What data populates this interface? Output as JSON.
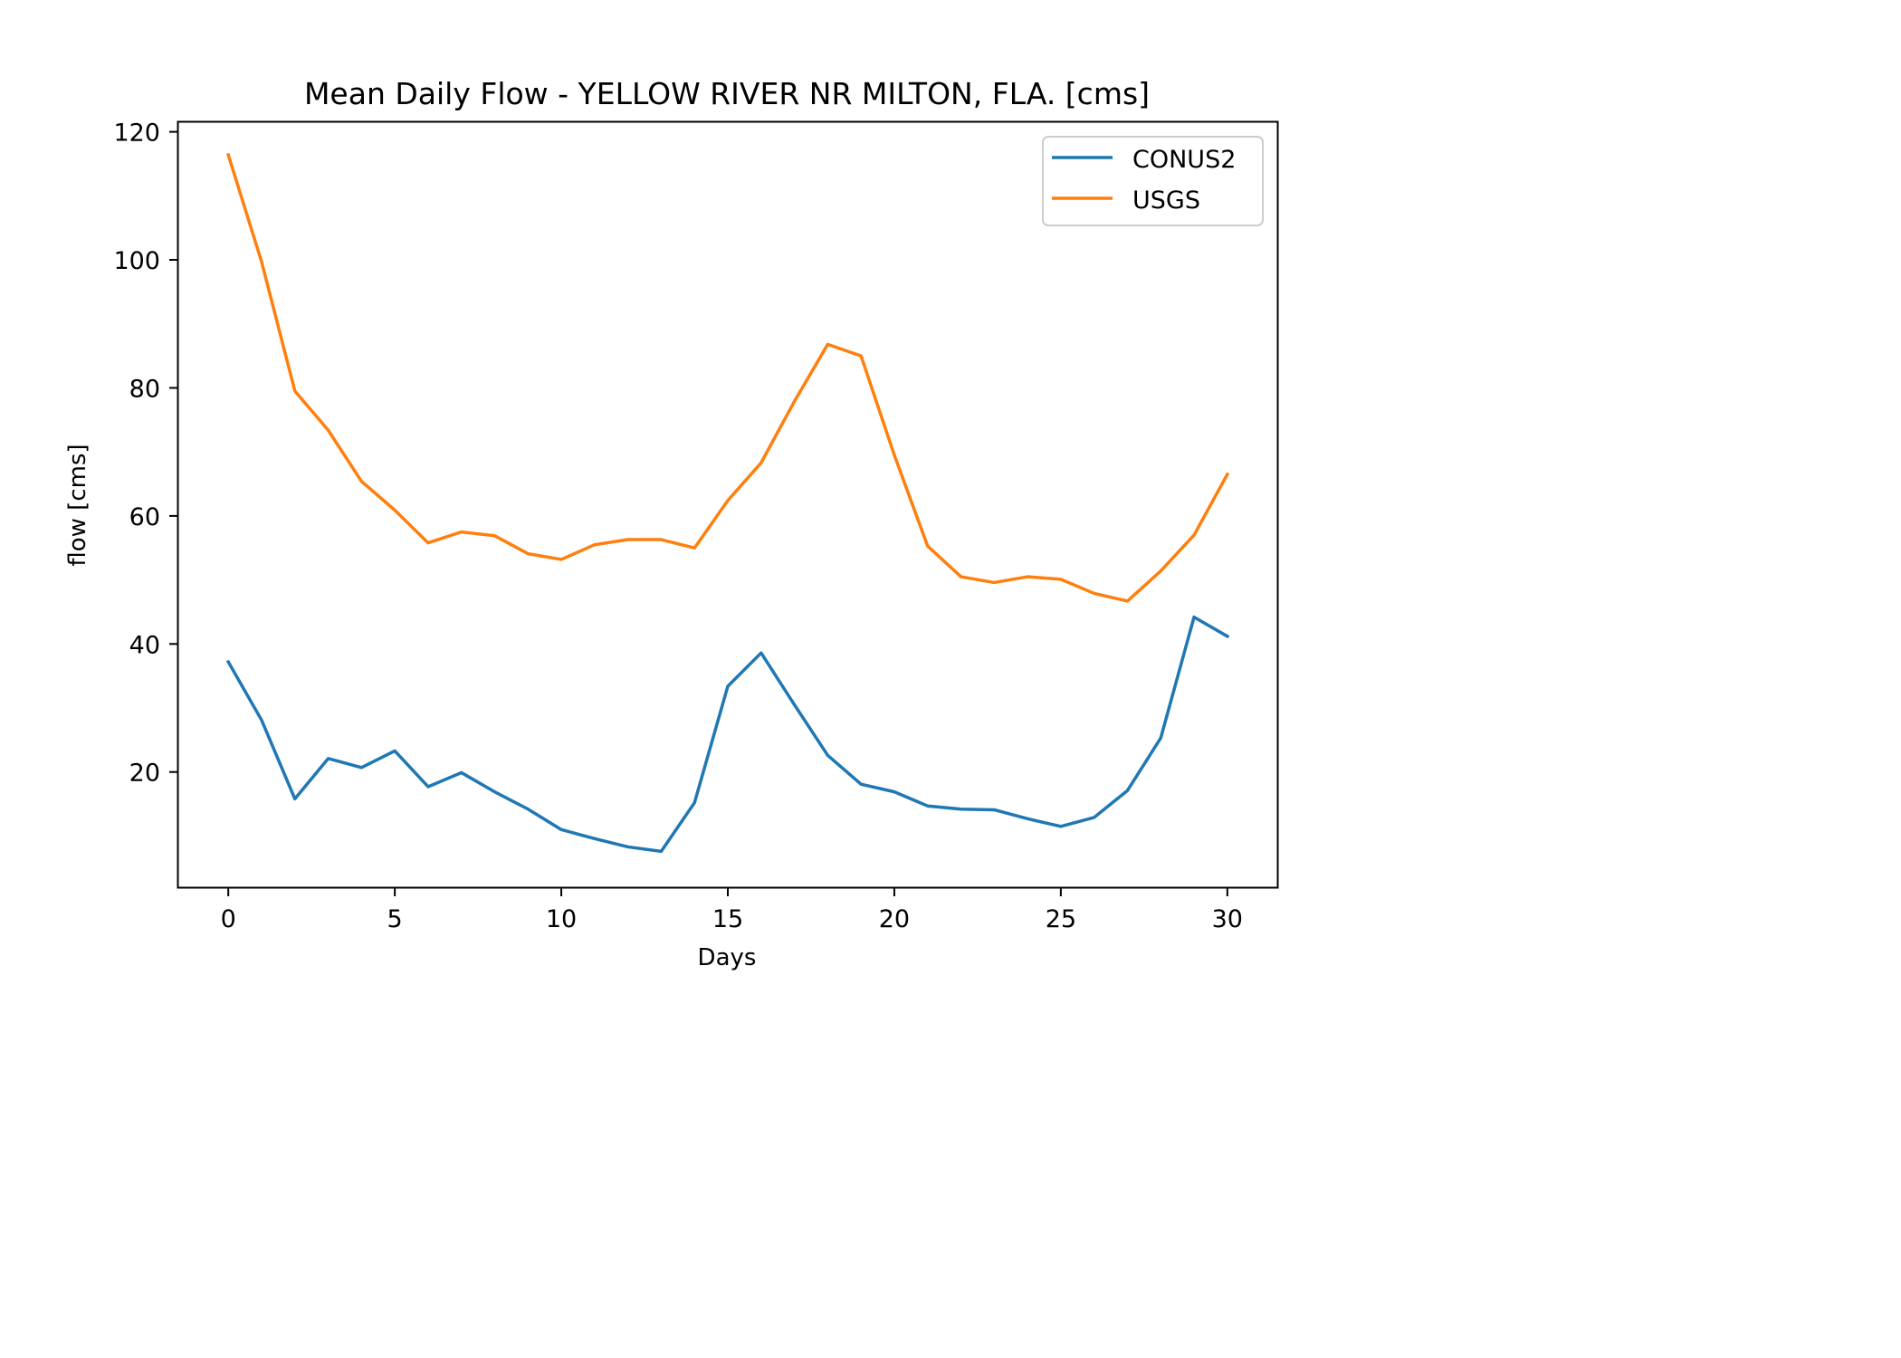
{
  "chart_data": {
    "type": "line",
    "title": "Mean Daily Flow - YELLOW RIVER NR MILTON, FLA. [cms]",
    "xlabel": "Days",
    "ylabel": "flow [cms]",
    "xlim": [
      -1.5,
      31.5
    ],
    "ylim": [
      2.0,
      121.5
    ],
    "xticks": [
      0,
      5,
      10,
      15,
      20,
      25,
      30
    ],
    "yticks": [
      20,
      40,
      60,
      80,
      100,
      120
    ],
    "grid": false,
    "legend_position": "top-right",
    "x": [
      0,
      1,
      2,
      3,
      4,
      5,
      6,
      7,
      8,
      9,
      10,
      11,
      12,
      13,
      14,
      15,
      16,
      17,
      18,
      19,
      20,
      21,
      22,
      23,
      24,
      25,
      26,
      27,
      28,
      29,
      30
    ],
    "series": [
      {
        "name": "CONUS2",
        "color": "#1f77b4",
        "values": [
          37.2,
          28.1,
          15.8,
          22.1,
          20.7,
          23.3,
          17.7,
          19.9,
          16.9,
          14.2,
          11.0,
          9.6,
          8.3,
          7.6,
          15.2,
          33.4,
          38.6,
          30.5,
          22.6,
          18.1,
          16.9,
          14.7,
          14.2,
          14.1,
          12.7,
          11.5,
          12.9,
          17.1,
          25.3,
          44.2,
          41.2
        ]
      },
      {
        "name": "USGS",
        "color": "#ff7f0e",
        "values": [
          116.4,
          99.7,
          79.5,
          73.4,
          65.4,
          60.9,
          55.8,
          57.5,
          56.9,
          54.1,
          53.2,
          55.5,
          56.3,
          56.3,
          55.0,
          62.4,
          68.3,
          77.9,
          86.8,
          85.0,
          69.5,
          55.3,
          50.5,
          49.6,
          50.5,
          50.1,
          47.9,
          46.7,
          51.4,
          57.0,
          66.5
        ]
      }
    ]
  }
}
